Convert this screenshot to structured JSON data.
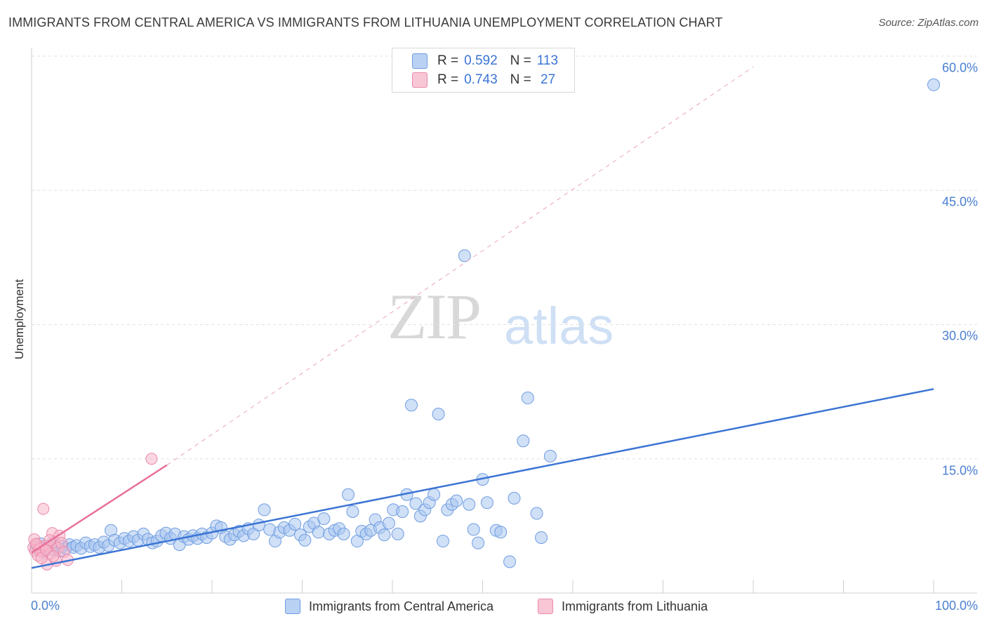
{
  "title": "IMMIGRANTS FROM CENTRAL AMERICA VS IMMIGRANTS FROM LITHUANIA UNEMPLOYMENT CORRELATION CHART",
  "source": "Source: ZipAtlas.com",
  "watermark": {
    "zip": "ZIP",
    "atlas": "atlas"
  },
  "legend": {
    "rows": [
      {
        "r_label": "R =",
        "r_value": "0.592",
        "n_label": "N =",
        "n_value": "113"
      },
      {
        "r_label": "R =",
        "r_value": "0.743",
        "n_label": "N =",
        "n_value": " 27"
      }
    ]
  },
  "bottom_legend": [
    "Immigrants from Central America",
    "Immigrants from Lithuania"
  ],
  "colors": {
    "blue": "#3b74d4",
    "blue_fill": "#a9c6f0",
    "pink": "#e8709a",
    "pink_fill": "#f7b6ca",
    "grid": "#dddddd"
  },
  "chart_data": {
    "type": "scatter",
    "title": "IMMIGRANTS FROM CENTRAL AMERICA VS IMMIGRANTS FROM LITHUANIA UNEMPLOYMENT CORRELATION CHART",
    "xlabel": "",
    "ylabel": "Unemployment",
    "xlim": [
      0,
      100
    ],
    "ylim": [
      0,
      62
    ],
    "x_ticks": [
      "0.0%",
      "100.0%"
    ],
    "y_ticks": [
      {
        "value": 15,
        "label": "15.0%"
      },
      {
        "value": 30,
        "label": "30.0%"
      },
      {
        "value": 45,
        "label": "45.0%"
      },
      {
        "value": 60,
        "label": "60.0%"
      }
    ],
    "grid": true,
    "legend_position": "top-center",
    "series": [
      {
        "name": "Immigrants from Central America",
        "color": "#3b74d4",
        "trend": {
          "x": [
            0,
            100
          ],
          "y": [
            2.8,
            22.8
          ],
          "style": "solid"
        },
        "points": [
          [
            0.5,
            5.2
          ],
          [
            0.8,
            4.8
          ],
          [
            1.0,
            5.5
          ],
          [
            1.3,
            4.6
          ],
          [
            1.6,
            5.0
          ],
          [
            1.9,
            5.3
          ],
          [
            2.2,
            4.9
          ],
          [
            2.5,
            5.6
          ],
          [
            2.8,
            5.1
          ],
          [
            3.1,
            4.7
          ],
          [
            3.4,
            5.2
          ],
          [
            3.8,
            5.0
          ],
          [
            4.2,
            5.4
          ],
          [
            4.6,
            5.1
          ],
          [
            5.0,
            5.3
          ],
          [
            5.5,
            5.0
          ],
          [
            6.0,
            5.6
          ],
          [
            6.5,
            5.2
          ],
          [
            7.0,
            5.4
          ],
          [
            7.5,
            5.1
          ],
          [
            8.0,
            5.7
          ],
          [
            8.5,
            5.3
          ],
          [
            8.8,
            7.0
          ],
          [
            9.2,
            5.9
          ],
          [
            9.8,
            5.6
          ],
          [
            10.3,
            6.1
          ],
          [
            10.8,
            5.8
          ],
          [
            11.3,
            6.3
          ],
          [
            11.8,
            5.9
          ],
          [
            12.4,
            6.6
          ],
          [
            12.9,
            6.0
          ],
          [
            13.4,
            5.6
          ],
          [
            13.9,
            5.8
          ],
          [
            14.4,
            6.4
          ],
          [
            14.9,
            6.7
          ],
          [
            15.4,
            6.1
          ],
          [
            15.9,
            6.6
          ],
          [
            16.4,
            5.4
          ],
          [
            16.9,
            6.3
          ],
          [
            17.4,
            6.0
          ],
          [
            17.9,
            6.4
          ],
          [
            18.4,
            6.1
          ],
          [
            18.9,
            6.6
          ],
          [
            19.4,
            6.2
          ],
          [
            20.0,
            6.7
          ],
          [
            20.5,
            7.5
          ],
          [
            21.0,
            7.3
          ],
          [
            21.5,
            6.3
          ],
          [
            22.0,
            6.0
          ],
          [
            22.5,
            6.5
          ],
          [
            23.0,
            6.9
          ],
          [
            23.5,
            6.4
          ],
          [
            24.0,
            7.2
          ],
          [
            24.6,
            6.6
          ],
          [
            25.2,
            7.6
          ],
          [
            25.8,
            9.3
          ],
          [
            26.4,
            7.1
          ],
          [
            27.0,
            5.8
          ],
          [
            27.5,
            6.8
          ],
          [
            28.0,
            7.3
          ],
          [
            28.6,
            7.0
          ],
          [
            29.2,
            7.7
          ],
          [
            29.8,
            6.5
          ],
          [
            30.3,
            5.9
          ],
          [
            30.8,
            7.4
          ],
          [
            31.3,
            7.8
          ],
          [
            31.8,
            6.8
          ],
          [
            32.4,
            8.3
          ],
          [
            33.0,
            6.6
          ],
          [
            33.6,
            7.0
          ],
          [
            34.1,
            7.2
          ],
          [
            34.6,
            6.6
          ],
          [
            35.1,
            11.0
          ],
          [
            35.6,
            9.1
          ],
          [
            36.1,
            5.8
          ],
          [
            36.6,
            6.9
          ],
          [
            37.1,
            6.6
          ],
          [
            37.6,
            7.0
          ],
          [
            38.1,
            8.2
          ],
          [
            38.6,
            7.3
          ],
          [
            39.1,
            6.5
          ],
          [
            39.6,
            7.8
          ],
          [
            40.1,
            9.3
          ],
          [
            40.6,
            6.6
          ],
          [
            41.1,
            9.1
          ],
          [
            41.6,
            11.0
          ],
          [
            42.1,
            21.0
          ],
          [
            42.6,
            10.0
          ],
          [
            43.1,
            8.6
          ],
          [
            43.6,
            9.3
          ],
          [
            44.1,
            10.1
          ],
          [
            44.6,
            11.0
          ],
          [
            45.1,
            20.0
          ],
          [
            45.6,
            5.8
          ],
          [
            46.1,
            9.3
          ],
          [
            46.6,
            9.9
          ],
          [
            47.1,
            10.3
          ],
          [
            48.0,
            37.7
          ],
          [
            48.5,
            9.9
          ],
          [
            49.0,
            7.1
          ],
          [
            49.5,
            5.6
          ],
          [
            50.0,
            12.7
          ],
          [
            50.5,
            10.1
          ],
          [
            51.5,
            7.0
          ],
          [
            52.0,
            6.8
          ],
          [
            53.0,
            3.5
          ],
          [
            53.5,
            10.6
          ],
          [
            54.5,
            17.0
          ],
          [
            55.0,
            21.8
          ],
          [
            56.0,
            8.9
          ],
          [
            56.5,
            6.2
          ],
          [
            57.5,
            15.3
          ],
          [
            100.0,
            56.8
          ]
        ]
      },
      {
        "name": "Immigrants from Lithuania",
        "color": "#e8709a",
        "trend": {
          "x": [
            0,
            15
          ],
          "y": [
            4.5,
            14.3
          ],
          "style": "solid",
          "extended_to": [
            80,
            58.8
          ],
          "extended_style": "dashed"
        },
        "points": [
          [
            0.2,
            5.1
          ],
          [
            0.4,
            4.7
          ],
          [
            0.6,
            5.4
          ],
          [
            0.8,
            4.9
          ],
          [
            1.0,
            5.0
          ],
          [
            1.2,
            4.6
          ],
          [
            1.3,
            9.4
          ],
          [
            1.5,
            5.3
          ],
          [
            1.7,
            3.2
          ],
          [
            1.9,
            5.2
          ],
          [
            2.1,
            4.4
          ],
          [
            2.3,
            6.7
          ],
          [
            2.5,
            5.7
          ],
          [
            2.7,
            3.6
          ],
          [
            2.9,
            5.0
          ],
          [
            3.1,
            6.4
          ],
          [
            3.3,
            5.6
          ],
          [
            0.3,
            6.0
          ],
          [
            0.7,
            4.2
          ],
          [
            1.1,
            3.9
          ],
          [
            1.6,
            4.8
          ],
          [
            2.0,
            5.9
          ],
          [
            2.4,
            4.1
          ],
          [
            3.6,
            4.6
          ],
          [
            4.0,
            3.7
          ],
          [
            13.3,
            15.0
          ],
          [
            0.5,
            5.5
          ]
        ]
      }
    ]
  }
}
